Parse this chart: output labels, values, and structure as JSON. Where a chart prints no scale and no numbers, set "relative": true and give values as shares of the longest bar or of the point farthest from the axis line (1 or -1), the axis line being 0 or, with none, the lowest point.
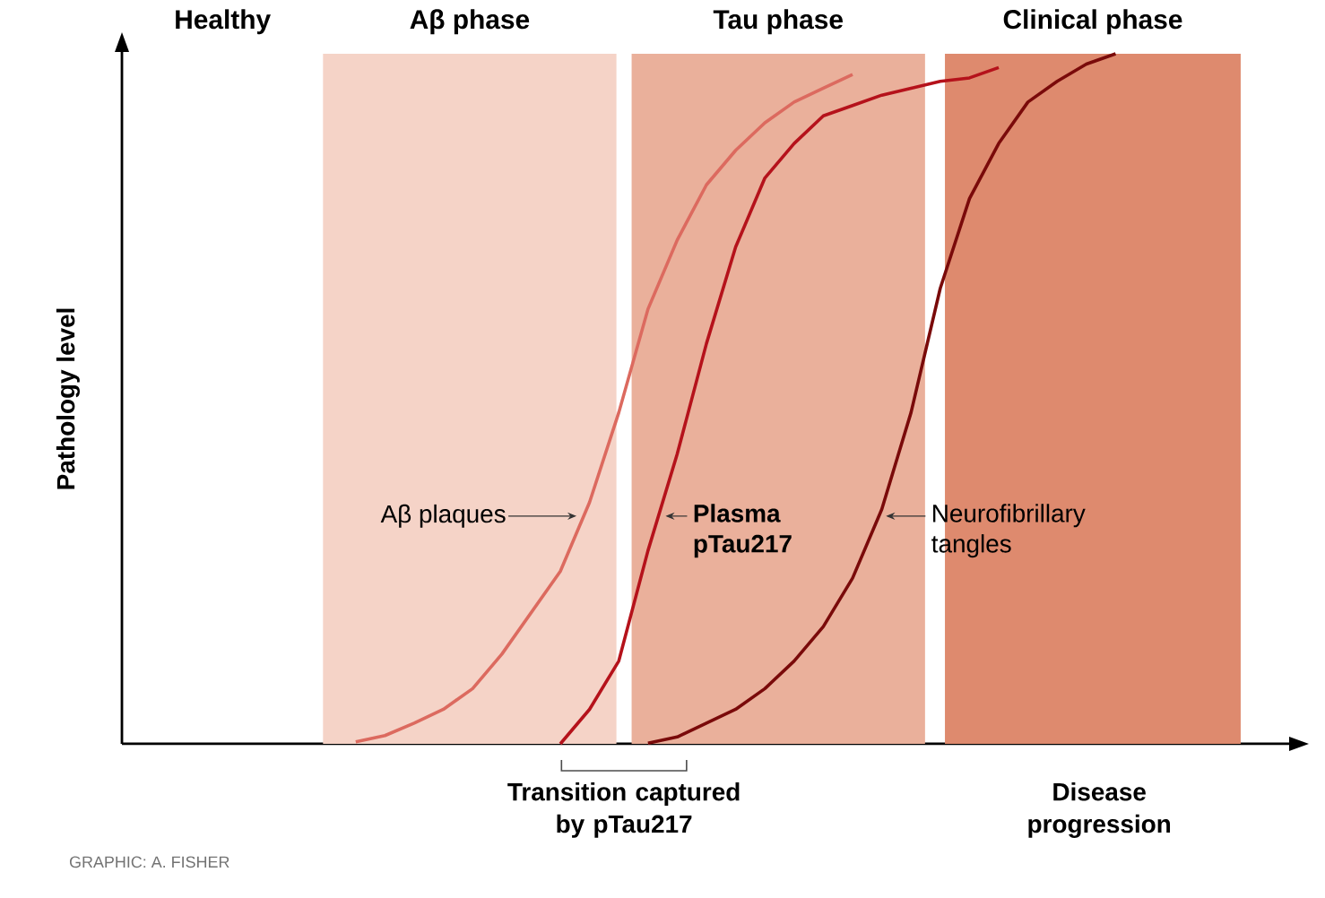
{
  "chart_data": {
    "type": "line",
    "relative": true,
    "tick_labels": false,
    "ylabel": "Pathology level",
    "xlabel": "Disease progression",
    "categories": [
      null,
      null,
      null,
      null,
      null,
      null,
      null,
      null,
      null,
      null,
      null,
      null,
      null,
      null,
      null,
      null,
      null,
      null,
      null,
      null,
      null,
      null,
      null,
      null,
      null,
      null,
      null,
      null,
      null,
      null,
      null,
      null,
      null,
      null,
      null,
      null,
      null,
      null,
      null,
      null,
      null
    ],
    "series": [
      {
        "name": "Aβ plaques",
        "color": "#dc6a5f",
        "values": [
          null,
          null,
          null,
          null,
          null,
          null,
          null,
          null,
          0.003,
          0.012,
          0.03,
          0.05,
          0.08,
          0.13,
          0.19,
          0.25,
          0.35,
          0.48,
          0.63,
          0.73,
          0.81,
          0.86,
          0.9,
          0.93,
          0.95,
          0.97,
          null,
          null,
          null,
          null,
          null,
          null,
          null,
          null,
          null,
          null,
          null,
          null,
          null,
          null,
          null
        ]
      },
      {
        "name": "Plasma pTau217",
        "color": "#b5121b",
        "values": [
          null,
          null,
          null,
          null,
          null,
          null,
          null,
          null,
          null,
          null,
          null,
          null,
          null,
          null,
          null,
          0,
          0.05,
          0.12,
          0.28,
          0.42,
          0.58,
          0.72,
          0.82,
          0.87,
          0.91,
          0.925,
          0.94,
          0.95,
          0.96,
          0.965,
          0.98,
          null,
          null,
          null,
          null,
          null,
          null,
          null,
          null,
          null,
          null
        ]
      },
      {
        "name": "Neurofibrillary tangles",
        "color": "#7a0a0a",
        "values": [
          null,
          null,
          null,
          null,
          null,
          null,
          null,
          null,
          null,
          null,
          null,
          null,
          null,
          null,
          null,
          null,
          null,
          null,
          0.001,
          0.01,
          0.03,
          0.05,
          0.08,
          0.12,
          0.17,
          0.24,
          0.34,
          0.48,
          0.66,
          0.79,
          0.87,
          0.93,
          0.96,
          0.985,
          1.0,
          null,
          null,
          null,
          null,
          null,
          null
        ]
      }
    ],
    "annotations": [
      "Healthy",
      "Aβ phase",
      "Tau phase",
      "Clinical phase",
      "Transition captured by pTau217",
      "GRAPHIC: A. FISHER"
    ]
  }
}
